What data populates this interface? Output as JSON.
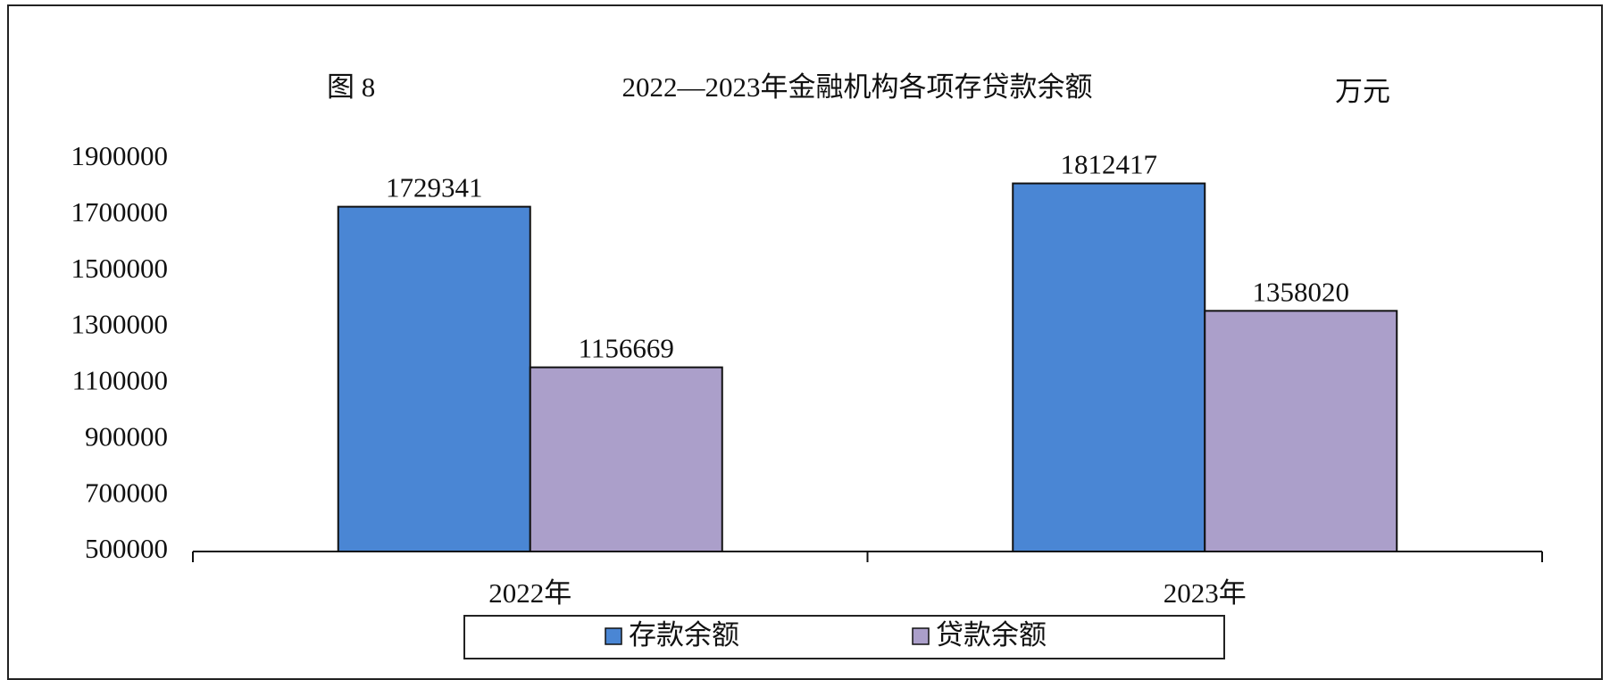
{
  "chart_data": {
    "type": "bar",
    "figure_label": "图 8",
    "title": "2022—2023年金融机构各项存贷款余额",
    "unit_label": "万元",
    "categories": [
      "2022年",
      "2023年"
    ],
    "series": [
      {
        "name": "存款余额",
        "color": "#4a86d4",
        "values": [
          1729341,
          1812417
        ]
      },
      {
        "name": "贷款余额",
        "color": "#ab9fca",
        "values": [
          1156669,
          1358020
        ]
      }
    ],
    "ylim": [
      500000,
      1900000
    ],
    "yticks": [
      500000,
      700000,
      900000,
      1100000,
      1300000,
      1500000,
      1700000,
      1900000
    ],
    "grid": false
  }
}
